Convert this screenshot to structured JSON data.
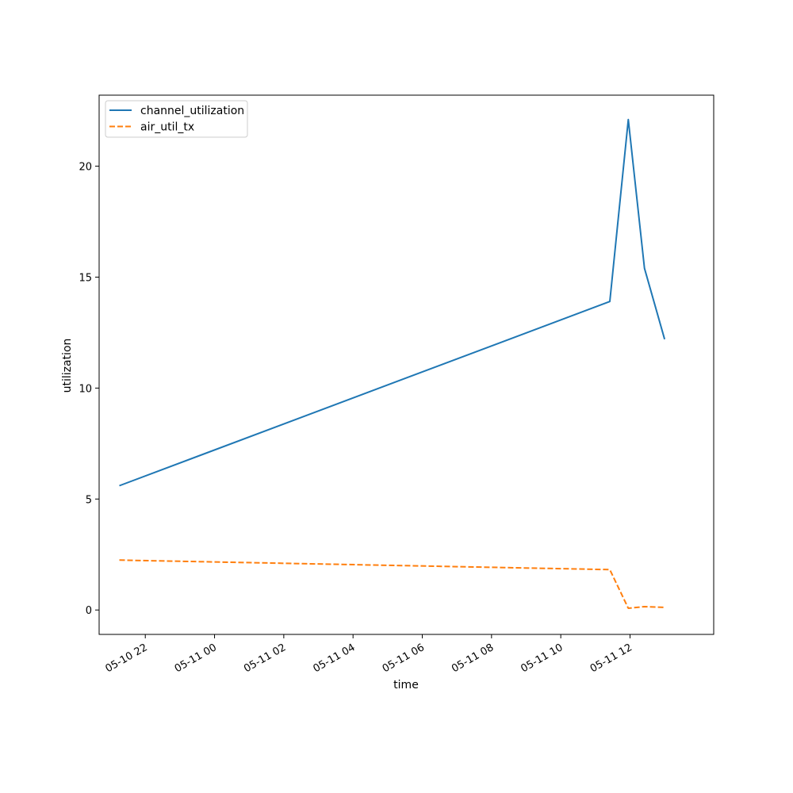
{
  "chart_data": {
    "type": "line",
    "title": "",
    "xlabel": "time",
    "ylabel": "utilization",
    "x_axis": {
      "scale": "time",
      "range": [
        "2025-05-10T20:40:00",
        "2025-05-11T14:25:00"
      ],
      "ticks": [
        {
          "value": "2025-05-10T22:00:00",
          "label": "05-10 22"
        },
        {
          "value": "2025-05-11T00:00:00",
          "label": "05-11 00"
        },
        {
          "value": "2025-05-11T02:00:00",
          "label": "05-11 02"
        },
        {
          "value": "2025-05-11T04:00:00",
          "label": "05-11 04"
        },
        {
          "value": "2025-05-11T06:00:00",
          "label": "05-11 06"
        },
        {
          "value": "2025-05-11T08:00:00",
          "label": "05-11 08"
        },
        {
          "value": "2025-05-11T10:00:00",
          "label": "05-11 10"
        },
        {
          "value": "2025-05-11T12:00:00",
          "label": "05-11 12"
        }
      ]
    },
    "y_axis": {
      "range": [
        -1.1,
        23.2
      ],
      "ticks": [
        0,
        5,
        10,
        15,
        20
      ]
    },
    "grid": false,
    "legend_position": "top-left",
    "series": [
      {
        "name": "channel_utilization",
        "color": "#1f77b4",
        "style": "solid",
        "points": [
          {
            "x": "2025-05-10T21:15:00",
            "y": 5.6
          },
          {
            "x": "2025-05-11T11:25:00",
            "y": 13.9
          },
          {
            "x": "2025-05-11T11:57:00",
            "y": 22.1
          },
          {
            "x": "2025-05-11T12:25:00",
            "y": 15.4
          },
          {
            "x": "2025-05-11T13:00:00",
            "y": 12.2
          }
        ]
      },
      {
        "name": "air_util_tx",
        "color": "#ff7f0e",
        "style": "dashed",
        "points": [
          {
            "x": "2025-05-10T21:15:00",
            "y": 2.25
          },
          {
            "x": "2025-05-11T11:25:00",
            "y": 1.82
          },
          {
            "x": "2025-05-11T11:57:00",
            "y": 0.08
          },
          {
            "x": "2025-05-11T12:25:00",
            "y": 0.15
          },
          {
            "x": "2025-05-11T13:00:00",
            "y": 0.12
          }
        ]
      }
    ]
  }
}
